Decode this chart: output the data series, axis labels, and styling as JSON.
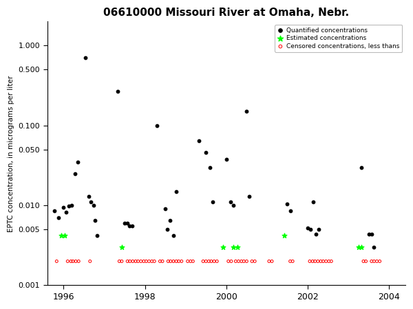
{
  "title": "06610000 Missouri River at Omaha, Nebr.",
  "ylabel": "EPTC concentration, in micrograms per liter",
  "xlim": [
    1995.6,
    2004.4
  ],
  "ylim_log": [
    0.001,
    2.0
  ],
  "yticks": [
    0.001,
    0.005,
    0.01,
    0.05,
    0.1,
    0.5,
    1.0
  ],
  "ytick_labels": [
    "0.001",
    "0.005",
    "0.010",
    "0.050",
    "0.100",
    "0.500",
    "1.000"
  ],
  "xticks": [
    1996,
    1998,
    2000,
    2002,
    2004
  ],
  "legend_labels": [
    "Quantified concentrations",
    "Estimated concentrations",
    "Censored concentrations, less thans"
  ],
  "quantified": [
    [
      1995.78,
      0.0085
    ],
    [
      1995.88,
      0.007
    ],
    [
      1996.0,
      0.0095
    ],
    [
      1996.07,
      0.0082
    ],
    [
      1996.13,
      0.0098
    ],
    [
      1996.2,
      0.01
    ],
    [
      1996.28,
      0.025
    ],
    [
      1996.35,
      0.035
    ],
    [
      1996.53,
      0.7
    ],
    [
      1996.62,
      0.013
    ],
    [
      1996.67,
      0.011
    ],
    [
      1996.73,
      0.01
    ],
    [
      1996.78,
      0.0065
    ],
    [
      1996.83,
      0.0042
    ],
    [
      1997.33,
      0.27
    ],
    [
      1997.5,
      0.006
    ],
    [
      1997.56,
      0.006
    ],
    [
      1997.62,
      0.0055
    ],
    [
      1997.68,
      0.0055
    ],
    [
      1998.3,
      0.1
    ],
    [
      1998.5,
      0.009
    ],
    [
      1998.55,
      0.005
    ],
    [
      1998.62,
      0.0065
    ],
    [
      1998.7,
      0.0042
    ],
    [
      1998.77,
      0.015
    ],
    [
      1999.32,
      0.065
    ],
    [
      1999.5,
      0.046
    ],
    [
      1999.6,
      0.03
    ],
    [
      1999.67,
      0.011
    ],
    [
      2000.0,
      0.038
    ],
    [
      2000.1,
      0.011
    ],
    [
      2000.17,
      0.01
    ],
    [
      2000.5,
      0.15
    ],
    [
      2000.57,
      0.013
    ],
    [
      2001.5,
      0.0105
    ],
    [
      2001.57,
      0.0085
    ],
    [
      2002.0,
      0.0052
    ],
    [
      2002.07,
      0.005
    ],
    [
      2002.13,
      0.011
    ],
    [
      2002.2,
      0.0044
    ],
    [
      2002.27,
      0.005
    ],
    [
      2003.32,
      0.03
    ],
    [
      2003.5,
      0.0044
    ],
    [
      2003.57,
      0.0044
    ],
    [
      2003.63,
      0.003
    ]
  ],
  "estimated": [
    [
      1995.95,
      0.0042
    ],
    [
      1996.02,
      0.0042
    ],
    [
      1997.43,
      0.003
    ],
    [
      1999.92,
      0.003
    ],
    [
      2000.17,
      0.003
    ],
    [
      2000.27,
      0.003
    ],
    [
      2001.43,
      0.0042
    ],
    [
      2003.25,
      0.003
    ],
    [
      2003.32,
      0.003
    ]
  ],
  "censored": [
    [
      1995.83,
      0.002
    ],
    [
      1996.1,
      0.002
    ],
    [
      1996.18,
      0.002
    ],
    [
      1996.23,
      0.002
    ],
    [
      1996.3,
      0.002
    ],
    [
      1996.37,
      0.002
    ],
    [
      1996.65,
      0.002
    ],
    [
      1997.37,
      0.002
    ],
    [
      1997.43,
      0.002
    ],
    [
      1997.57,
      0.002
    ],
    [
      1997.63,
      0.002
    ],
    [
      1997.7,
      0.002
    ],
    [
      1997.77,
      0.002
    ],
    [
      1997.83,
      0.002
    ],
    [
      1997.9,
      0.002
    ],
    [
      1997.97,
      0.002
    ],
    [
      1998.03,
      0.002
    ],
    [
      1998.1,
      0.002
    ],
    [
      1998.17,
      0.002
    ],
    [
      1998.23,
      0.002
    ],
    [
      1998.37,
      0.002
    ],
    [
      1998.43,
      0.002
    ],
    [
      1998.57,
      0.002
    ],
    [
      1998.63,
      0.002
    ],
    [
      1998.7,
      0.002
    ],
    [
      1998.77,
      0.002
    ],
    [
      1998.83,
      0.002
    ],
    [
      1998.9,
      0.002
    ],
    [
      1999.05,
      0.002
    ],
    [
      1999.12,
      0.002
    ],
    [
      1999.18,
      0.002
    ],
    [
      1999.43,
      0.002
    ],
    [
      1999.5,
      0.002
    ],
    [
      1999.57,
      0.002
    ],
    [
      1999.63,
      0.002
    ],
    [
      1999.7,
      0.002
    ],
    [
      1999.77,
      0.002
    ],
    [
      2000.05,
      0.002
    ],
    [
      2000.12,
      0.002
    ],
    [
      2000.23,
      0.002
    ],
    [
      2000.3,
      0.002
    ],
    [
      2000.37,
      0.002
    ],
    [
      2000.43,
      0.002
    ],
    [
      2000.5,
      0.002
    ],
    [
      2000.63,
      0.002
    ],
    [
      2000.7,
      0.002
    ],
    [
      2001.05,
      0.002
    ],
    [
      2001.12,
      0.002
    ],
    [
      2001.57,
      0.002
    ],
    [
      2001.63,
      0.002
    ],
    [
      2002.05,
      0.002
    ],
    [
      2002.12,
      0.002
    ],
    [
      2002.18,
      0.002
    ],
    [
      2002.25,
      0.002
    ],
    [
      2002.32,
      0.002
    ],
    [
      2002.38,
      0.002
    ],
    [
      2002.45,
      0.002
    ],
    [
      2002.52,
      0.002
    ],
    [
      2002.58,
      0.002
    ],
    [
      2003.37,
      0.002
    ],
    [
      2003.43,
      0.002
    ],
    [
      2003.57,
      0.002
    ],
    [
      2003.63,
      0.002
    ],
    [
      2003.7,
      0.002
    ],
    [
      2003.77,
      0.002
    ]
  ]
}
